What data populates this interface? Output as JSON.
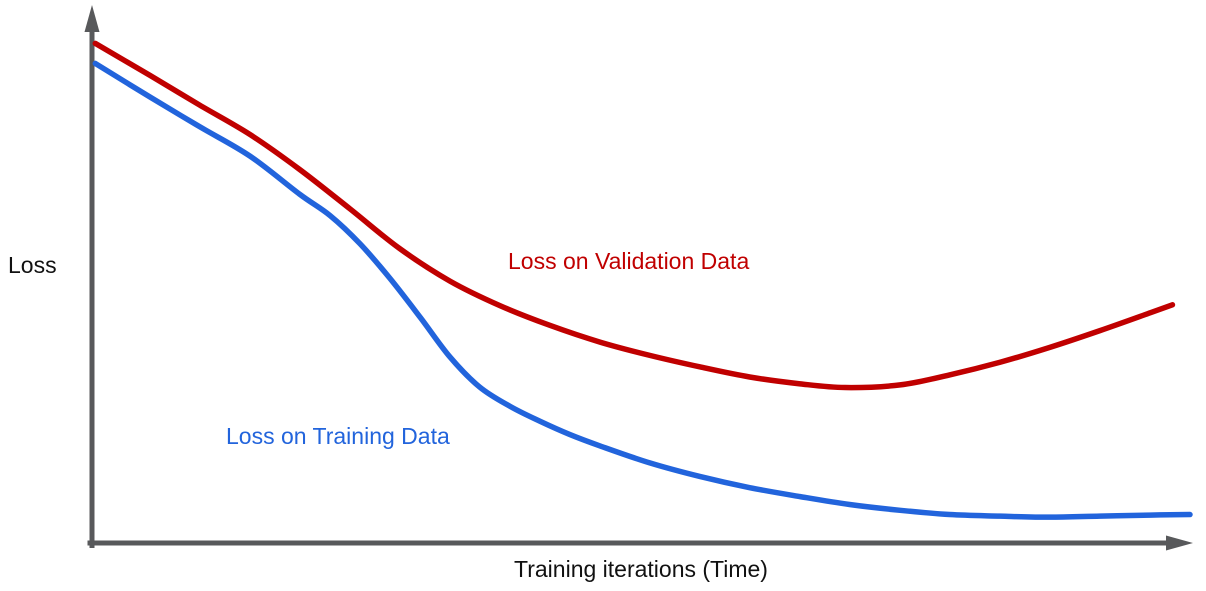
{
  "chart_data": {
    "type": "line",
    "title": "",
    "xlabel": "Training iterations (Time)",
    "ylabel": "Loss",
    "grid": false,
    "legend_position": "inline-annotations",
    "axis_color": "#58595b",
    "x_axis": {
      "range": [
        0,
        100
      ],
      "ticks": "none",
      "unit": "training iterations"
    },
    "y_axis": {
      "range": [
        0,
        1
      ],
      "ticks": "none",
      "unit": "relative loss"
    },
    "series": [
      {
        "name": "validation",
        "label": "Loss on Validation Data",
        "color": "#c00000",
        "points": [
          [
            0.3,
            0.948
          ],
          [
            5.3,
            0.887
          ],
          [
            9.8,
            0.831
          ],
          [
            14.4,
            0.775
          ],
          [
            18.9,
            0.709
          ],
          [
            23.5,
            0.634
          ],
          [
            28.0,
            0.559
          ],
          [
            32.6,
            0.497
          ],
          [
            37.2,
            0.45
          ],
          [
            41.7,
            0.413
          ],
          [
            46.3,
            0.381
          ],
          [
            50.8,
            0.356
          ],
          [
            55.4,
            0.334
          ],
          [
            59.9,
            0.315
          ],
          [
            64.5,
            0.302
          ],
          [
            68.6,
            0.295
          ],
          [
            73.6,
            0.3
          ],
          [
            78.1,
            0.319
          ],
          [
            82.7,
            0.343
          ],
          [
            87.2,
            0.371
          ],
          [
            91.8,
            0.403
          ],
          [
            96.4,
            0.437
          ],
          [
            98.4,
            0.452
          ]
        ]
      },
      {
        "name": "training",
        "label": "Loss on Training Data",
        "color": "#2264dc",
        "points": [
          [
            0.3,
            0.91
          ],
          [
            5.3,
            0.846
          ],
          [
            9.8,
            0.79
          ],
          [
            14.4,
            0.734
          ],
          [
            18.9,
            0.662
          ],
          [
            21.7,
            0.621
          ],
          [
            24.4,
            0.568
          ],
          [
            27.1,
            0.503
          ],
          [
            29.9,
            0.428
          ],
          [
            32.6,
            0.353
          ],
          [
            35.3,
            0.296
          ],
          [
            38.1,
            0.259
          ],
          [
            40.8,
            0.231
          ],
          [
            43.5,
            0.206
          ],
          [
            46.3,
            0.184
          ],
          [
            50.8,
            0.152
          ],
          [
            55.4,
            0.126
          ],
          [
            59.9,
            0.105
          ],
          [
            64.5,
            0.088
          ],
          [
            69.0,
            0.073
          ],
          [
            73.6,
            0.062
          ],
          [
            78.1,
            0.054
          ],
          [
            82.7,
            0.051
          ],
          [
            87.2,
            0.049
          ],
          [
            91.8,
            0.051
          ],
          [
            96.4,
            0.053
          ],
          [
            100,
            0.054
          ]
        ]
      }
    ]
  }
}
